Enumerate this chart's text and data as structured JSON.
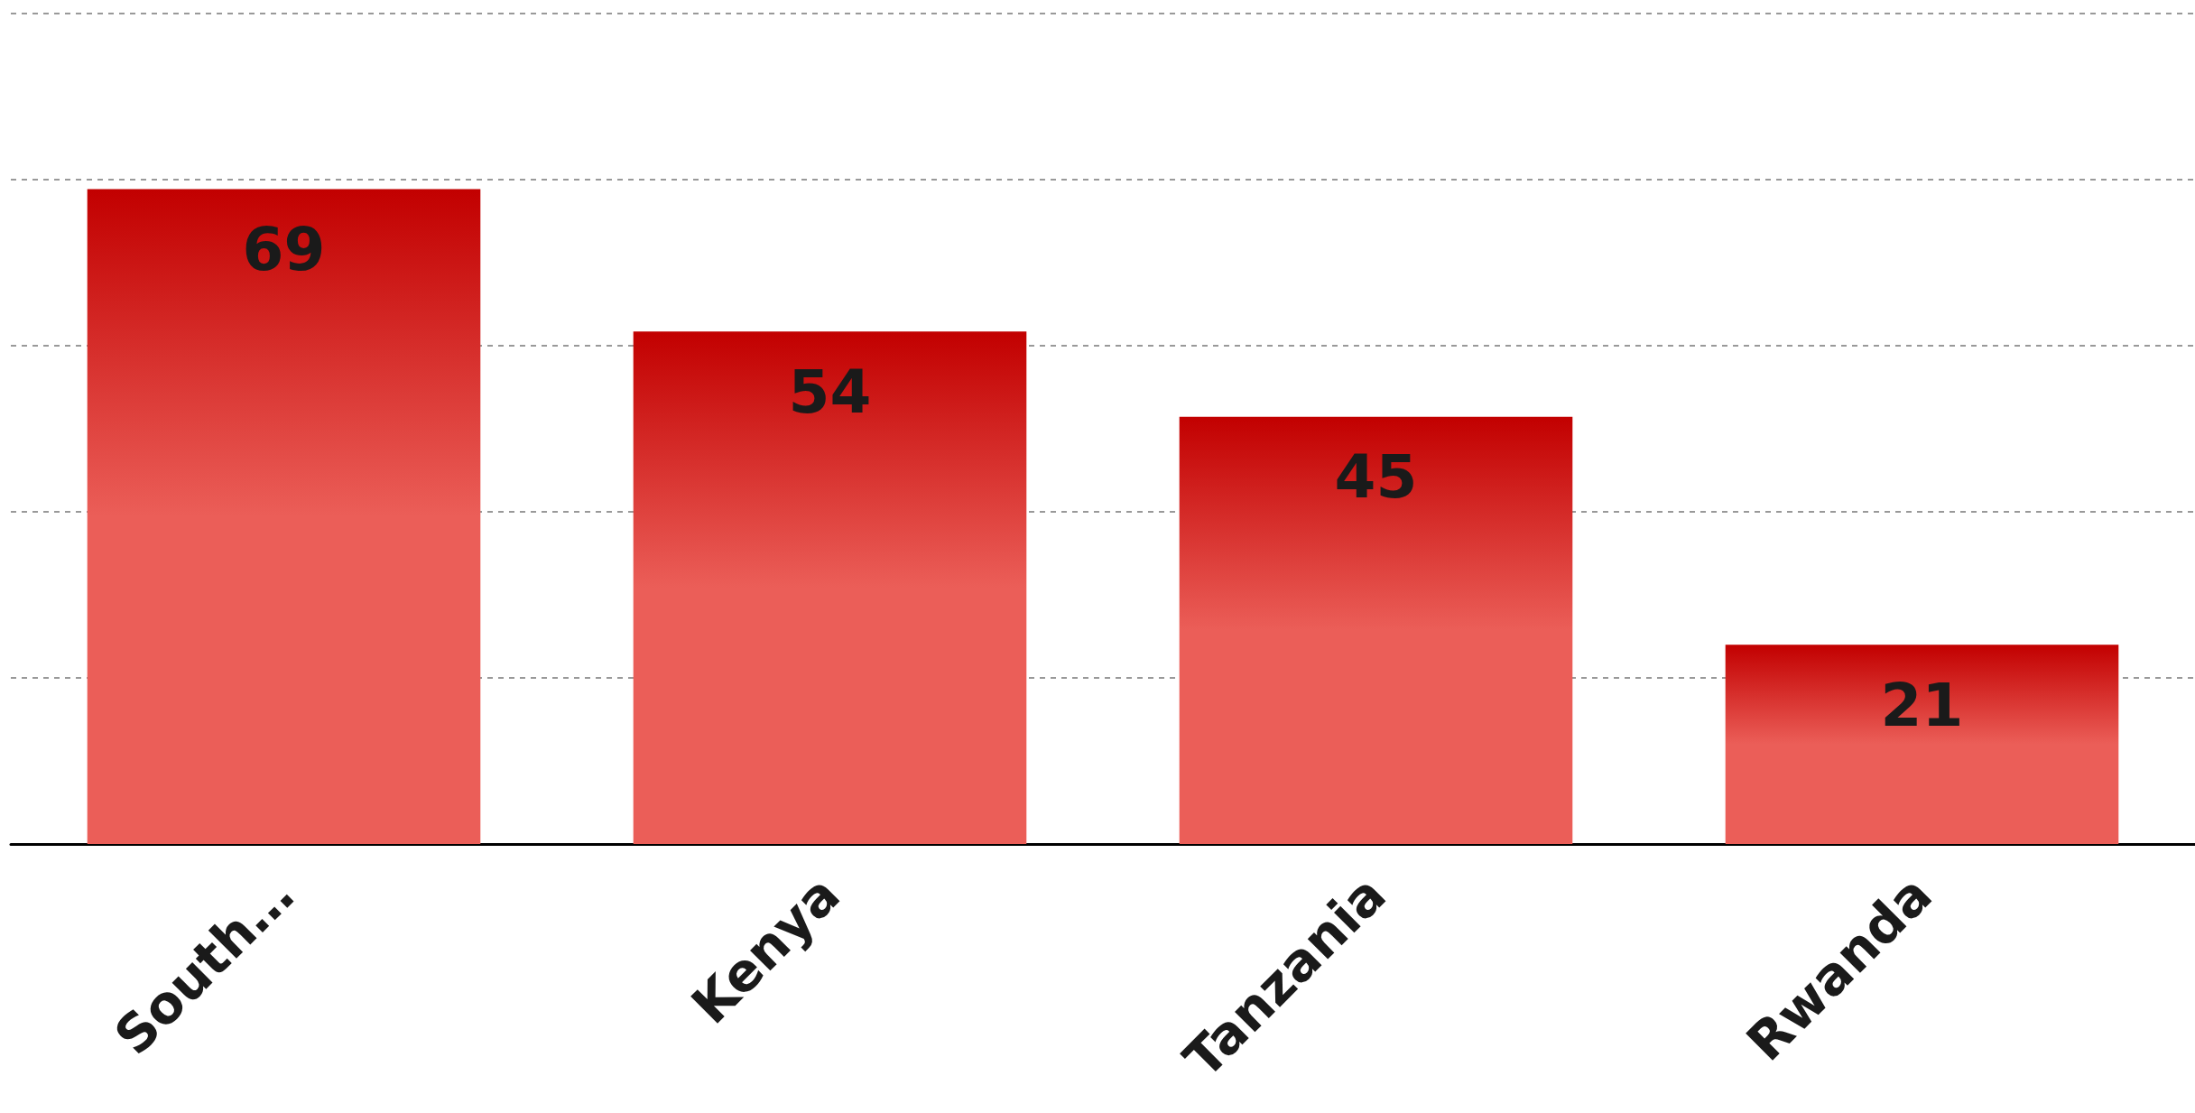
{
  "chart_data": {
    "type": "bar",
    "categories": [
      "South…",
      "Kenya",
      "Tanzania",
      "Rwanda"
    ],
    "values": [
      69,
      54,
      45,
      21
    ],
    "color": "#eb5e58",
    "ylim": [
      0,
      87.5
    ],
    "yticks": [
      {
        "value": 0,
        "label": null
      },
      {
        "value": 17.5,
        "label": null
      },
      {
        "value": 35,
        "label": null
      },
      {
        "value": 52.5,
        "label": null
      },
      {
        "value": 70,
        "label": null
      },
      {
        "value": 87.5,
        "label": null
      }
    ],
    "grid": "y",
    "tick_labels": "x",
    "data_labels": true
  }
}
